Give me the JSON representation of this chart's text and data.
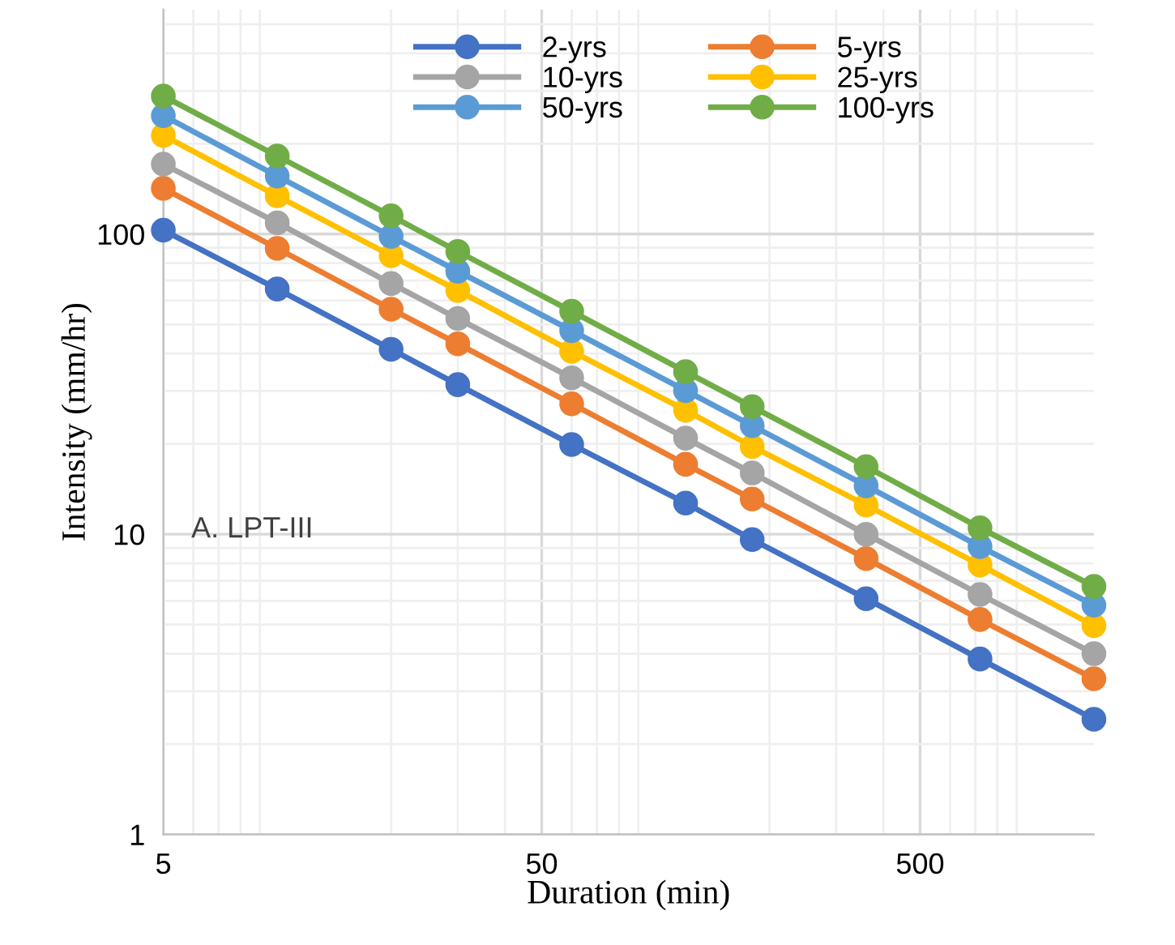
{
  "chart_data": {
    "type": "line",
    "xlabel": "Duration (min)",
    "ylabel": "Intensity (mm/hr)",
    "log": "xy",
    "x": [
      5,
      10,
      20,
      30,
      60,
      120,
      180,
      360,
      720,
      1440
    ],
    "xlim": [
      5,
      1440
    ],
    "xticks": [
      5,
      50,
      500
    ],
    "ylim": [
      1,
      560
    ],
    "yticks": [
      1,
      10,
      100
    ],
    "grid": true,
    "legend": "top",
    "marker": "circle",
    "line_style": "solid",
    "annotations": [
      "A. LPT-III"
    ],
    "series": [
      {
        "name": "2-yrs",
        "color": "#4472c4",
        "values": [
          103,
          65.6,
          41.3,
          31.5,
          19.9,
          12.7,
          9.6,
          6.1,
          3.84,
          2.42
        ]
      },
      {
        "name": "5-yrs",
        "color": "#ed7d31",
        "values": [
          142,
          89.6,
          56.2,
          43.1,
          27.2,
          17.1,
          13.1,
          8.3,
          5.2,
          3.3
        ]
      },
      {
        "name": "10-yrs",
        "color": "#a5a5a5",
        "values": [
          171,
          109,
          68.4,
          52.3,
          33.2,
          20.9,
          16.0,
          10.0,
          6.3,
          4.0
        ]
      },
      {
        "name": "25-yrs",
        "color": "#ffc000",
        "values": [
          213,
          134,
          84.7,
          64.9,
          40.7,
          25.9,
          19.6,
          12.5,
          7.9,
          4.96
        ]
      },
      {
        "name": "50-yrs",
        "color": "#5b9bd5",
        "values": [
          248,
          156,
          98.2,
          75.2,
          47.7,
          30.1,
          23.0,
          14.5,
          9.1,
          5.8
        ]
      },
      {
        "name": "100-yrs",
        "color": "#70ad47",
        "values": [
          288,
          182,
          115,
          87.5,
          55.3,
          34.8,
          26.6,
          16.8,
          10.5,
          6.7
        ]
      }
    ]
  }
}
